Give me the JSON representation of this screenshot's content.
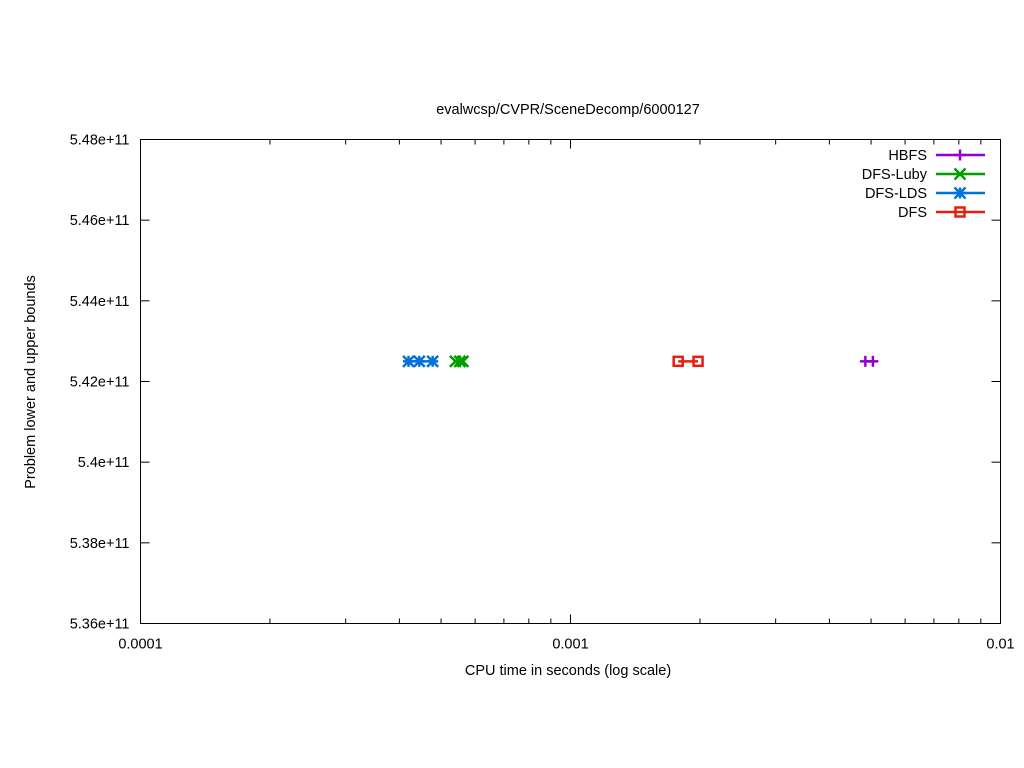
{
  "chart_data": {
    "type": "scatter",
    "title": "evalwcsp/CVPR/SceneDecomp/6000127",
    "xlabel": "CPU time in seconds (log scale)",
    "ylabel": "Problem lower and upper bounds",
    "xscale": "log",
    "xlim": [
      0.0001,
      0.01
    ],
    "ylim": [
      536000000000,
      548000000000
    ],
    "x_ticks": [
      0.0001,
      0.001,
      0.01
    ],
    "x_tick_labels": [
      "0.0001",
      "0.001",
      "0.01"
    ],
    "y_ticks": [
      536000000000,
      538000000000,
      540000000000,
      542000000000,
      544000000000,
      546000000000,
      548000000000
    ],
    "y_tick_labels": [
      "5.36e+11",
      "5.38e+11",
      "5.4e+11",
      "5.42e+11",
      "5.44e+11",
      "5.46e+11",
      "5.48e+11"
    ],
    "grid": false,
    "legend_position": "top-right",
    "series": [
      {
        "name": "HBFS",
        "color": "#9400d3",
        "marker": "plus",
        "x": [
          0.00485,
          0.00505
        ],
        "y": [
          542500000000,
          542500000000
        ]
      },
      {
        "name": "DFS-Luby",
        "color": "#009e00",
        "marker": "cross",
        "x": [
          0.00054,
          0.000553,
          0.000562
        ],
        "y": [
          542500000000,
          542500000000,
          542500000000
        ]
      },
      {
        "name": "DFS-LDS",
        "color": "#0072d9",
        "marker": "star",
        "x": [
          0.00042,
          0.000445,
          0.000478
        ],
        "y": [
          542500000000,
          542500000000,
          542500000000
        ]
      },
      {
        "name": "DFS",
        "color": "#e51e10",
        "marker": "box",
        "x": [
          0.00178,
          0.00198
        ],
        "y": [
          542500000000,
          542500000000
        ]
      }
    ]
  }
}
